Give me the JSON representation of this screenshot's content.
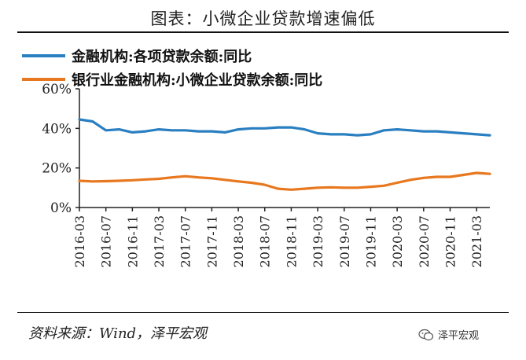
{
  "title": "图表：小微企业贷款增速偏低",
  "source": "资料来源：Wind，泽平宏观",
  "watermark": "泽平宏观",
  "colors": {
    "series1": "#2a7fc1",
    "series2": "#e8781f"
  },
  "chart_data": {
    "type": "line",
    "x": [
      "2016-03",
      "2016-05",
      "2016-07",
      "2016-09",
      "2016-11",
      "2017-01",
      "2017-03",
      "2017-05",
      "2017-07",
      "2017-09",
      "2017-11",
      "2018-01",
      "2018-03",
      "2018-05",
      "2018-07",
      "2018-09",
      "2018-11",
      "2019-01",
      "2019-03",
      "2019-05",
      "2019-07",
      "2019-09",
      "2019-11",
      "2020-01",
      "2020-03",
      "2020-05",
      "2020-07",
      "2020-09",
      "2020-11",
      "2021-01",
      "2021-03",
      "2021-05"
    ],
    "xticks": [
      "2016-03",
      "2016-07",
      "2016-11",
      "2017-03",
      "2017-07",
      "2017-11",
      "2018-03",
      "2018-07",
      "2018-11",
      "2019-03",
      "2019-07",
      "2019-11",
      "2020-03",
      "2020-07",
      "2020-11",
      "2021-03"
    ],
    "yticks": [
      "0%",
      "20%",
      "40%",
      "60%"
    ],
    "ylim": [
      0,
      60
    ],
    "series": [
      {
        "name": "金融机构:各项贷款余额:同比",
        "values": [
          44.5,
          43.5,
          39.0,
          39.5,
          38.0,
          38.5,
          39.5,
          39.0,
          39.0,
          38.5,
          38.5,
          38.0,
          39.5,
          40.0,
          40.0,
          40.5,
          40.5,
          39.5,
          37.5,
          37.0,
          37.0,
          36.5,
          37.0,
          39.0,
          39.5,
          39.0,
          38.5,
          38.5,
          38.0,
          37.5,
          37.0,
          36.5
        ]
      },
      {
        "name": "银行业金融机构:小微企业贷款余额:同比",
        "values": [
          13.5,
          13.2,
          13.3,
          13.5,
          13.8,
          14.2,
          14.5,
          15.2,
          15.8,
          15.2,
          14.8,
          14.0,
          13.2,
          12.5,
          11.5,
          9.5,
          9.0,
          9.5,
          10.0,
          10.2,
          10.0,
          10.0,
          10.5,
          11.0,
          12.5,
          14.0,
          15.0,
          15.5,
          15.5,
          16.5,
          17.5,
          17.0
        ]
      }
    ]
  }
}
